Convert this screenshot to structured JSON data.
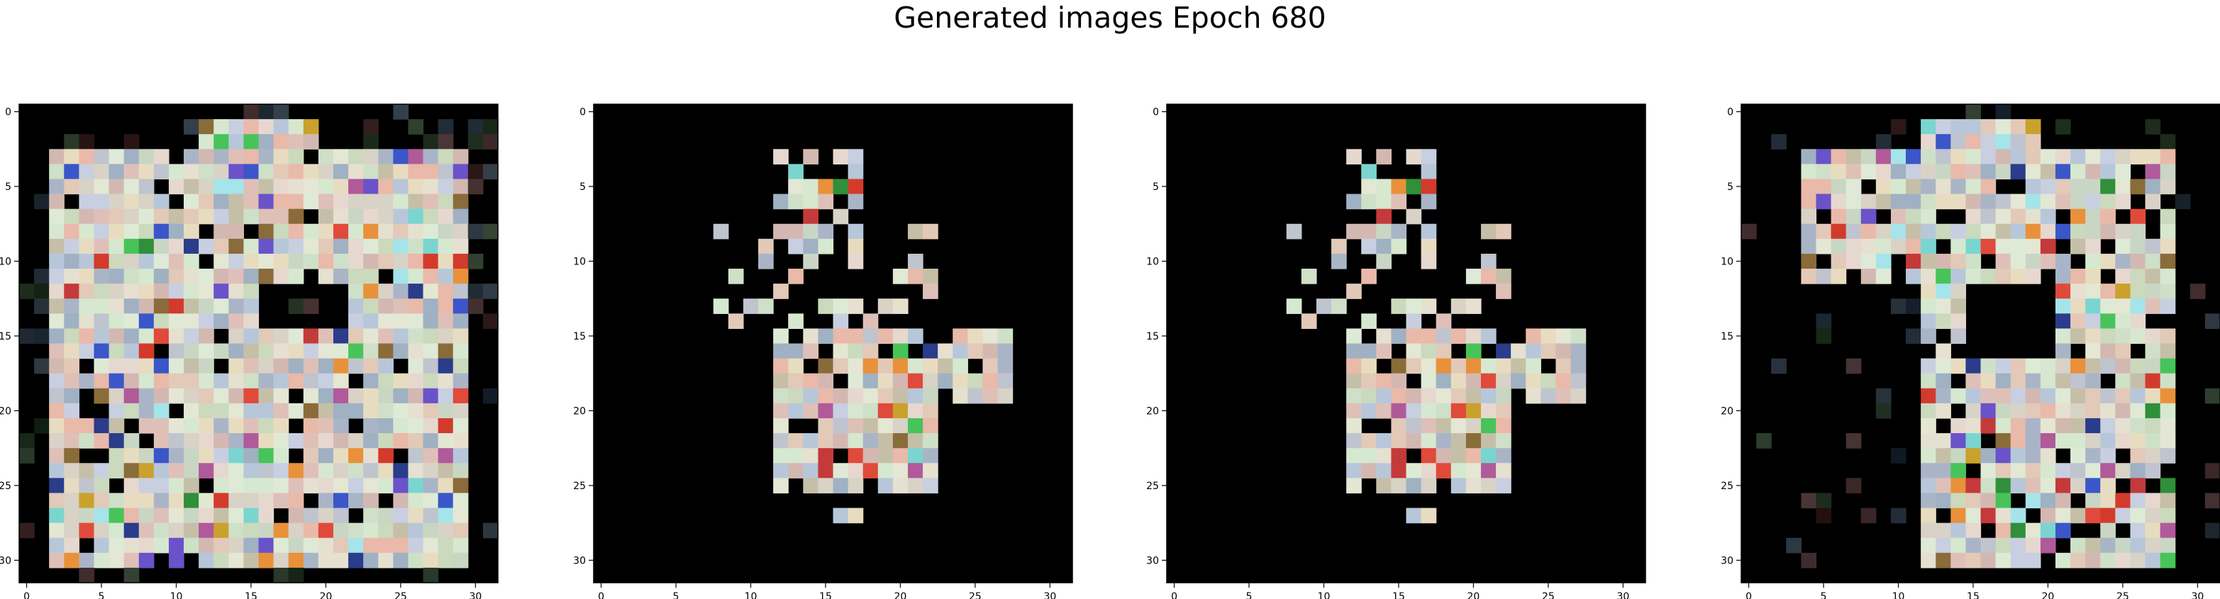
{
  "figure": {
    "title": "Generated images Epoch 680"
  },
  "chart_data": [
    {
      "type": "heatmap",
      "x_ticks": [
        0,
        5,
        10,
        15,
        20,
        25,
        30
      ],
      "y_ticks": [
        0,
        5,
        10,
        15,
        20,
        25,
        30
      ],
      "grid": 32,
      "xlim": [
        -0.5,
        31.5
      ],
      "ylim": [
        31.5,
        -0.5
      ],
      "grid_lines": false,
      "background": "#000000"
    },
    {
      "type": "heatmap",
      "x_ticks": [
        0,
        5,
        10,
        15,
        20,
        25,
        30
      ],
      "y_ticks": [
        0,
        5,
        10,
        15,
        20,
        25,
        30
      ],
      "grid": 32,
      "xlim": [
        -0.5,
        31.5
      ],
      "ylim": [
        31.5,
        -0.5
      ],
      "grid_lines": false,
      "background": "#000000"
    },
    {
      "type": "heatmap",
      "x_ticks": [
        0,
        5,
        10,
        15,
        20,
        25,
        30
      ],
      "y_ticks": [
        0,
        5,
        10,
        15,
        20,
        25,
        30
      ],
      "grid": 32,
      "xlim": [
        -0.5,
        31.5
      ],
      "ylim": [
        31.5,
        -0.5
      ],
      "grid_lines": false,
      "background": "#000000"
    },
    {
      "type": "heatmap",
      "x_ticks": [
        0,
        5,
        10,
        15,
        20,
        25,
        30
      ],
      "y_ticks": [
        0,
        5,
        10,
        15,
        20,
        25,
        30
      ],
      "grid": 32,
      "xlim": [
        -0.5,
        31.5
      ],
      "ylim": [
        31.5,
        -0.5
      ],
      "grid_lines": false,
      "background": "#000000"
    }
  ]
}
